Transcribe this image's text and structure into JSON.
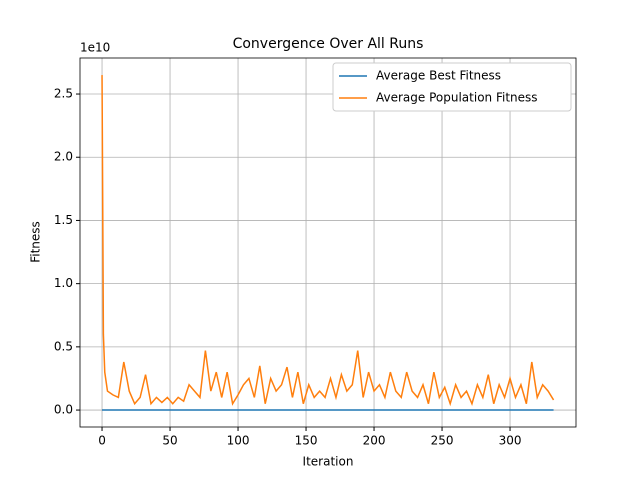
{
  "chart_data": {
    "type": "line",
    "title": "Convergence Over All Runs",
    "x_label": "Iteration",
    "y_label": "Fitness",
    "y_offset_text": "1e10",
    "x": [
      0,
      1,
      2,
      4,
      8,
      12,
      16,
      20,
      24,
      28,
      32,
      36,
      40,
      44,
      48,
      52,
      56,
      60,
      64,
      68,
      72,
      76,
      80,
      84,
      88,
      92,
      96,
      100,
      104,
      108,
      112,
      116,
      120,
      124,
      128,
      132,
      136,
      140,
      144,
      148,
      152,
      156,
      160,
      164,
      168,
      172,
      176,
      180,
      184,
      188,
      192,
      196,
      200,
      204,
      208,
      212,
      216,
      220,
      224,
      228,
      232,
      236,
      240,
      244,
      248,
      252,
      256,
      260,
      264,
      268,
      272,
      276,
      280,
      284,
      288,
      292,
      296,
      300,
      304,
      308,
      312,
      316,
      320,
      324,
      328,
      332
    ],
    "series": [
      {
        "name": "Average Best Fitness",
        "color": "#1f77b4",
        "values": [
          0,
          0,
          0,
          0,
          0,
          0,
          0,
          0,
          0,
          0,
          0,
          0,
          0,
          0,
          0,
          0,
          0,
          0,
          0,
          0,
          0,
          0,
          0,
          0,
          0,
          0,
          0,
          0,
          0,
          0,
          0,
          0,
          0,
          0,
          0,
          0,
          0,
          0,
          0,
          0,
          0,
          0,
          0,
          0,
          0,
          0,
          0,
          0,
          0,
          0,
          0,
          0,
          0,
          0,
          0,
          0,
          0,
          0,
          0,
          0,
          0,
          0,
          0,
          0,
          0,
          0,
          0,
          0,
          0,
          0,
          0,
          0,
          0,
          0,
          0,
          0,
          0,
          0,
          0,
          0,
          0,
          0,
          0,
          0,
          0,
          0
        ]
      },
      {
        "name": "Average Population Fitness",
        "color": "#ff7f0e",
        "values": [
          2.65,
          0.6,
          0.3,
          0.15,
          0.12,
          0.1,
          0.38,
          0.15,
          0.05,
          0.1,
          0.28,
          0.05,
          0.1,
          0.06,
          0.1,
          0.05,
          0.1,
          0.07,
          0.2,
          0.15,
          0.1,
          0.47,
          0.15,
          0.3,
          0.1,
          0.3,
          0.05,
          0.12,
          0.2,
          0.25,
          0.1,
          0.35,
          0.05,
          0.25,
          0.15,
          0.2,
          0.34,
          0.1,
          0.3,
          0.05,
          0.2,
          0.1,
          0.15,
          0.1,
          0.25,
          0.1,
          0.28,
          0.15,
          0.2,
          0.47,
          0.1,
          0.3,
          0.15,
          0.2,
          0.1,
          0.3,
          0.15,
          0.1,
          0.3,
          0.15,
          0.1,
          0.2,
          0.05,
          0.3,
          0.1,
          0.18,
          0.05,
          0.2,
          0.1,
          0.15,
          0.05,
          0.2,
          0.1,
          0.28,
          0.05,
          0.2,
          0.1,
          0.25,
          0.1,
          0.2,
          0.05,
          0.38,
          0.1,
          0.2,
          0.15,
          0.08
        ]
      }
    ],
    "xlim": [
      -16.2,
      348.5
    ],
    "ylim": [
      -0.134,
      2.785
    ],
    "xticks": [
      0,
      50,
      100,
      150,
      200,
      250,
      300
    ],
    "yticks": [
      {
        "value": 0,
        "label": "0.0"
      },
      0.5,
      {
        "value": 1,
        "label": "1.0"
      },
      1.5,
      {
        "value": 2,
        "label": "2.0"
      },
      2.5
    ],
    "grid": true,
    "legend": "upper right"
  }
}
